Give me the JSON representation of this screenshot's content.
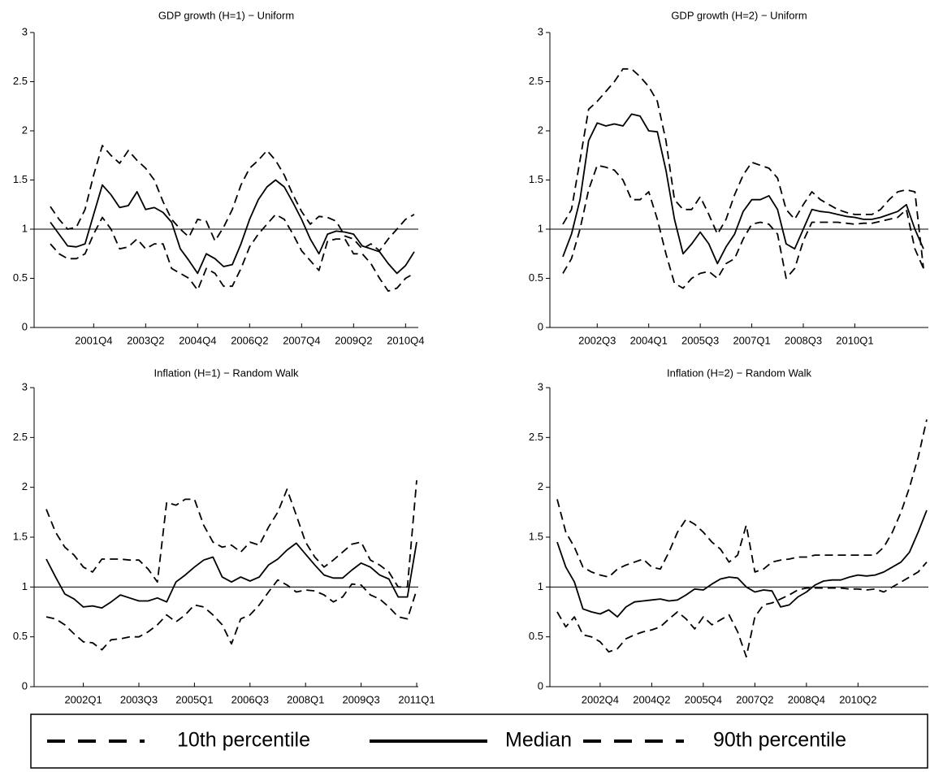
{
  "chart_data": [
    {
      "type": "line",
      "title": "GDP growth (H=1) − Uniform",
      "hline": 1,
      "categories": [
        null,
        null,
        null,
        null,
        null,
        "2001Q4",
        null,
        null,
        null,
        null,
        null,
        "2003Q2",
        null,
        null,
        null,
        null,
        null,
        "2004Q4",
        null,
        null,
        null,
        null,
        null,
        "2006Q2",
        null,
        null,
        null,
        null,
        null,
        "2007Q4",
        null,
        null,
        null,
        null,
        null,
        "2009Q2",
        null,
        null,
        null,
        null,
        null,
        "2010Q4",
        null
      ],
      "ylim": [
        0,
        3
      ],
      "yticks": [
        0,
        0.5,
        1,
        1.5,
        2,
        2.5,
        3
      ],
      "series": [
        {
          "name": "10th percentile",
          "color": "#000000",
          "dashed": true,
          "values": [
            0.85,
            0.75,
            0.7,
            0.7,
            0.75,
            0.95,
            1.12,
            1.0,
            0.8,
            0.82,
            0.9,
            0.8,
            0.85,
            0.85,
            0.6,
            0.55,
            0.5,
            0.38,
            0.6,
            0.55,
            0.42,
            0.42,
            0.6,
            0.82,
            0.95,
            1.05,
            1.15,
            1.1,
            0.95,
            0.78,
            0.68,
            0.58,
            0.88,
            0.9,
            0.9,
            0.75,
            0.75,
            0.65,
            0.5,
            0.37,
            0.4,
            0.5,
            0.55
          ]
        },
        {
          "name": "Median",
          "color": "#000000",
          "dashed": false,
          "values": [
            1.07,
            0.95,
            0.83,
            0.82,
            0.85,
            1.15,
            1.45,
            1.35,
            1.22,
            1.24,
            1.38,
            1.2,
            1.22,
            1.17,
            1.07,
            0.8,
            0.68,
            0.55,
            0.75,
            0.7,
            0.62,
            0.64,
            0.85,
            1.1,
            1.3,
            1.43,
            1.5,
            1.43,
            1.27,
            1.1,
            0.9,
            0.75,
            0.95,
            0.98,
            0.97,
            0.95,
            0.83,
            0.8,
            0.77,
            0.65,
            0.55,
            0.63,
            0.77
          ]
        },
        {
          "name": "90th percentile",
          "color": "#000000",
          "dashed": true,
          "values": [
            1.23,
            1.1,
            1.0,
            1.02,
            1.2,
            1.55,
            1.85,
            1.75,
            1.67,
            1.8,
            1.7,
            1.62,
            1.5,
            1.28,
            1.1,
            1.0,
            0.92,
            1.1,
            1.08,
            0.88,
            1.02,
            1.2,
            1.45,
            1.62,
            1.7,
            1.8,
            1.7,
            1.55,
            1.35,
            1.18,
            1.05,
            1.13,
            1.12,
            1.08,
            0.93,
            0.9,
            0.8,
            0.85,
            0.78,
            0.9,
            1.0,
            1.1,
            1.15
          ]
        }
      ]
    },
    {
      "type": "line",
      "title": "GDP growth (H=2) − Uniform",
      "hline": 1,
      "categories": [
        null,
        null,
        null,
        null,
        "2002Q3",
        null,
        null,
        null,
        null,
        null,
        "2004Q1",
        null,
        null,
        null,
        null,
        null,
        "2005Q3",
        null,
        null,
        null,
        null,
        null,
        "2007Q1",
        null,
        null,
        null,
        null,
        null,
        "2008Q3",
        null,
        null,
        null,
        null,
        null,
        "2010Q1",
        null,
        null,
        null,
        null,
        null,
        null,
        null,
        null
      ],
      "ylim": [
        0,
        3
      ],
      "yticks": [
        0,
        0.5,
        1,
        1.5,
        2,
        2.5,
        3
      ],
      "series": [
        {
          "name": "10th percentile",
          "color": "#000000",
          "dashed": true,
          "values": [
            0.55,
            0.7,
            1.0,
            1.4,
            1.65,
            1.63,
            1.6,
            1.5,
            1.3,
            1.3,
            1.38,
            1.1,
            0.75,
            0.45,
            0.4,
            0.5,
            0.55,
            0.57,
            0.5,
            0.65,
            0.7,
            0.9,
            1.05,
            1.07,
            1.05,
            0.95,
            0.5,
            0.6,
            0.88,
            1.07,
            1.07,
            1.07,
            1.07,
            1.06,
            1.05,
            1.06,
            1.06,
            1.08,
            1.1,
            1.12,
            1.2,
            0.8,
            0.6
          ]
        },
        {
          "name": "Median",
          "color": "#000000",
          "dashed": false,
          "values": [
            0.72,
            0.95,
            1.3,
            1.9,
            2.08,
            2.05,
            2.07,
            2.05,
            2.17,
            2.15,
            2.0,
            1.99,
            1.6,
            1.1,
            0.75,
            0.85,
            0.97,
            0.85,
            0.65,
            0.82,
            0.95,
            1.18,
            1.3,
            1.3,
            1.34,
            1.2,
            0.85,
            0.8,
            1.0,
            1.2,
            1.18,
            1.17,
            1.15,
            1.13,
            1.12,
            1.1,
            1.1,
            1.12,
            1.15,
            1.18,
            1.25,
            1.0,
            0.8
          ]
        },
        {
          "name": "90th percentile",
          "color": "#000000",
          "dashed": true,
          "values": [
            1.05,
            1.2,
            1.7,
            2.22,
            2.3,
            2.4,
            2.5,
            2.63,
            2.63,
            2.55,
            2.45,
            2.3,
            1.9,
            1.3,
            1.2,
            1.2,
            1.33,
            1.15,
            0.95,
            1.1,
            1.35,
            1.55,
            1.68,
            1.65,
            1.62,
            1.52,
            1.2,
            1.1,
            1.25,
            1.38,
            1.3,
            1.25,
            1.2,
            1.17,
            1.15,
            1.15,
            1.15,
            1.2,
            1.3,
            1.38,
            1.4,
            1.38,
            0.6
          ]
        }
      ]
    },
    {
      "type": "line",
      "title": "Inflation (H=1) − Random Walk",
      "hline": 1,
      "categories": [
        null,
        null,
        null,
        null,
        "2002Q1",
        null,
        null,
        null,
        null,
        null,
        "2003Q3",
        null,
        null,
        null,
        null,
        null,
        "2005Q1",
        null,
        null,
        null,
        null,
        null,
        "2006Q3",
        null,
        null,
        null,
        null,
        null,
        "2008Q1",
        null,
        null,
        null,
        null,
        null,
        "2009Q3",
        null,
        null,
        null,
        null,
        null,
        "2011Q1"
      ],
      "ylim": [
        0,
        3
      ],
      "yticks": [
        0,
        0.5,
        1,
        1.5,
        2,
        2.5,
        3
      ],
      "series": [
        {
          "name": "10th percentile",
          "color": "#000000",
          "dashed": true,
          "values": [
            0.7,
            0.68,
            0.62,
            0.53,
            0.45,
            0.44,
            0.37,
            0.47,
            0.48,
            0.5,
            0.5,
            0.55,
            0.62,
            0.72,
            0.65,
            0.72,
            0.82,
            0.8,
            0.72,
            0.62,
            0.43,
            0.68,
            0.72,
            0.82,
            0.95,
            1.07,
            1.02,
            0.95,
            0.97,
            0.96,
            0.92,
            0.85,
            0.9,
            1.03,
            1.02,
            0.92,
            0.88,
            0.8,
            0.7,
            0.68,
            0.97
          ]
        },
        {
          "name": "Median",
          "color": "#000000",
          "dashed": false,
          "values": [
            1.28,
            1.1,
            0.93,
            0.88,
            0.8,
            0.81,
            0.79,
            0.85,
            0.92,
            0.89,
            0.86,
            0.86,
            0.89,
            0.85,
            1.05,
            1.12,
            1.2,
            1.27,
            1.3,
            1.1,
            1.05,
            1.1,
            1.06,
            1.1,
            1.22,
            1.28,
            1.37,
            1.44,
            1.33,
            1.22,
            1.12,
            1.09,
            1.09,
            1.17,
            1.24,
            1.2,
            1.12,
            1.08,
            0.9,
            0.9,
            1.45
          ]
        },
        {
          "name": "90th percentile",
          "color": "#000000",
          "dashed": true,
          "values": [
            1.78,
            1.55,
            1.4,
            1.32,
            1.2,
            1.15,
            1.28,
            1.28,
            1.28,
            1.27,
            1.27,
            1.18,
            1.05,
            1.85,
            1.82,
            1.88,
            1.88,
            1.62,
            1.45,
            1.4,
            1.42,
            1.35,
            1.45,
            1.42,
            1.6,
            1.75,
            1.98,
            1.72,
            1.45,
            1.3,
            1.2,
            1.27,
            1.35,
            1.43,
            1.45,
            1.27,
            1.22,
            1.15,
            1.0,
            1.0,
            2.07
          ]
        }
      ]
    },
    {
      "type": "line",
      "title": "Inflation (H=2) − Random Walk",
      "hline": 1,
      "categories": [
        null,
        null,
        null,
        null,
        null,
        "2002Q4",
        null,
        null,
        null,
        null,
        null,
        "2004Q2",
        null,
        null,
        null,
        null,
        null,
        "2005Q4",
        null,
        null,
        null,
        null,
        null,
        "2007Q2",
        null,
        null,
        null,
        null,
        null,
        "2008Q4",
        null,
        null,
        null,
        null,
        null,
        "2010Q2",
        null,
        null,
        null,
        null,
        null,
        null,
        null,
        null
      ],
      "ylim": [
        0,
        3
      ],
      "yticks": [
        0,
        0.5,
        1,
        1.5,
        2,
        2.5,
        3
      ],
      "series": [
        {
          "name": "10th percentile",
          "color": "#000000",
          "dashed": true,
          "values": [
            0.75,
            0.6,
            0.7,
            0.52,
            0.5,
            0.45,
            0.35,
            0.38,
            0.48,
            0.52,
            0.55,
            0.57,
            0.6,
            0.68,
            0.75,
            0.68,
            0.58,
            0.7,
            0.62,
            0.67,
            0.72,
            0.55,
            0.3,
            0.7,
            0.82,
            0.84,
            0.88,
            0.92,
            0.97,
            0.99,
            0.99,
            0.99,
            0.99,
            0.99,
            0.98,
            0.98,
            0.97,
            0.98,
            0.95,
            1.0,
            1.05,
            1.1,
            1.15,
            1.25
          ]
        },
        {
          "name": "Median",
          "color": "#000000",
          "dashed": false,
          "values": [
            1.45,
            1.2,
            1.05,
            0.78,
            0.75,
            0.73,
            0.77,
            0.7,
            0.8,
            0.85,
            0.86,
            0.87,
            0.88,
            0.86,
            0.87,
            0.92,
            0.98,
            0.97,
            1.03,
            1.08,
            1.1,
            1.09,
            1.0,
            0.95,
            0.97,
            0.96,
            0.8,
            0.82,
            0.9,
            0.95,
            1.02,
            1.06,
            1.07,
            1.07,
            1.1,
            1.12,
            1.11,
            1.12,
            1.15,
            1.2,
            1.25,
            1.35,
            1.55,
            1.77
          ]
        },
        {
          "name": "90th percentile",
          "color": "#000000",
          "dashed": true,
          "values": [
            1.88,
            1.55,
            1.4,
            1.2,
            1.15,
            1.12,
            1.1,
            1.18,
            1.22,
            1.25,
            1.28,
            1.2,
            1.18,
            1.35,
            1.55,
            1.68,
            1.63,
            1.55,
            1.45,
            1.38,
            1.25,
            1.32,
            1.62,
            1.15,
            1.18,
            1.25,
            1.27,
            1.28,
            1.3,
            1.3,
            1.32,
            1.32,
            1.32,
            1.32,
            1.32,
            1.32,
            1.32,
            1.32,
            1.4,
            1.55,
            1.75,
            2.0,
            2.3,
            2.68
          ]
        }
      ]
    }
  ]
}
